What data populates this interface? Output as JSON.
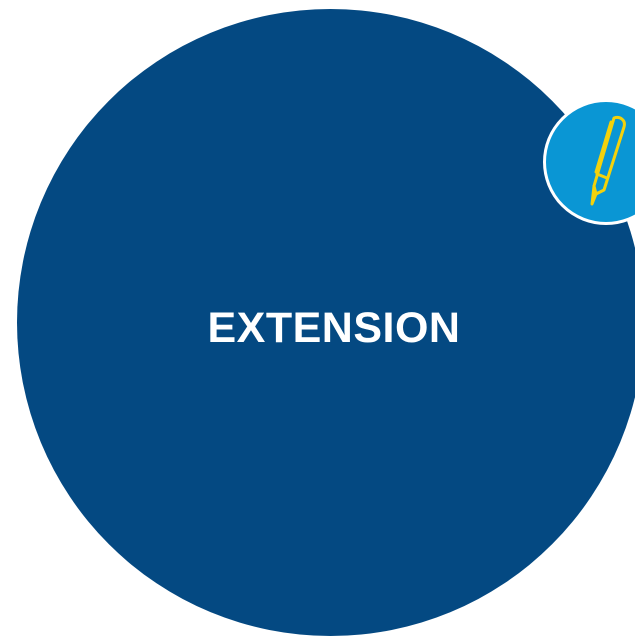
{
  "heading": {
    "text": "EXTENSION"
  },
  "badge": {
    "icon": "pen-icon"
  },
  "colors": {
    "circle": "#044982",
    "badge": "#0a96d4",
    "pen_stroke": "#f3d20c",
    "text": "#ffffff",
    "background": "#ffffff"
  }
}
